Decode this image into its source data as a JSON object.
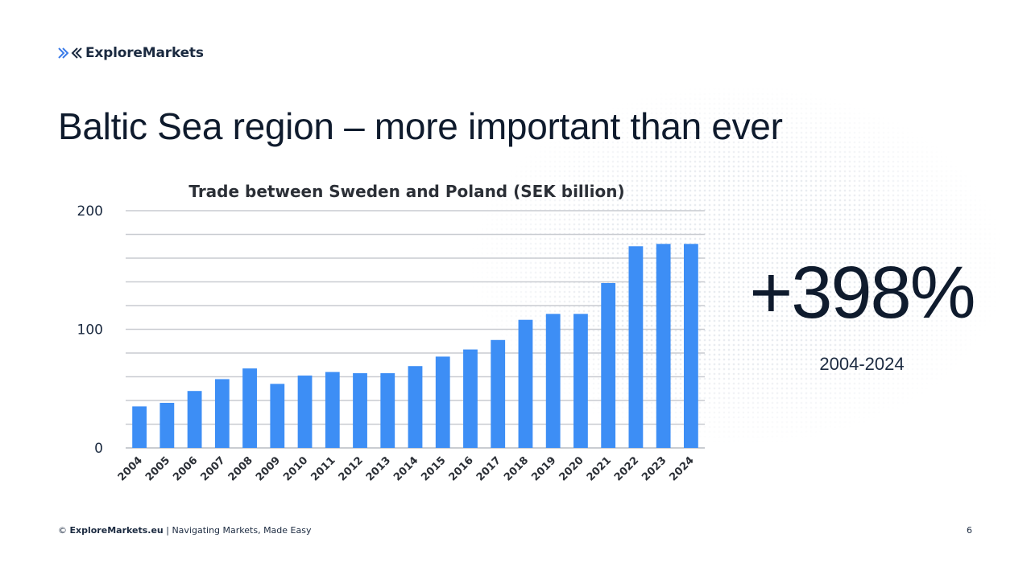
{
  "brand": {
    "name": "ExploreMarkets",
    "icon": "chevron-arrows-icon",
    "color": "#3b7be8"
  },
  "slide": {
    "title": "Baltic Sea region – more important than ever",
    "page_number": "6"
  },
  "stat": {
    "value": "+398%",
    "period": "2004-2024"
  },
  "footer": {
    "symbol": "©",
    "site": "ExploreMarkets.eu",
    "tagline": "| Navigating Markets, Made Easy"
  },
  "chart_data": {
    "type": "bar",
    "title": "Trade between Sweden and Poland (SEK billion)",
    "xlabel": "",
    "ylabel": "",
    "categories": [
      "2004",
      "2005",
      "2006",
      "2007",
      "2008",
      "2009",
      "2010",
      "2011",
      "2012",
      "2013",
      "2014",
      "2015",
      "2016",
      "2017",
      "2018",
      "2019",
      "2020",
      "2021",
      "2022",
      "2023",
      "2024"
    ],
    "values": [
      35,
      38,
      48,
      58,
      67,
      54,
      61,
      64,
      63,
      63,
      69,
      77,
      83,
      91,
      108,
      113,
      113,
      139,
      170,
      172,
      172
    ],
    "yticks": [
      0,
      100,
      200
    ],
    "ylim": [
      0,
      200
    ],
    "grid": true,
    "bar_color": "#3d8ef5",
    "grid_color": "#c9ccd1"
  }
}
